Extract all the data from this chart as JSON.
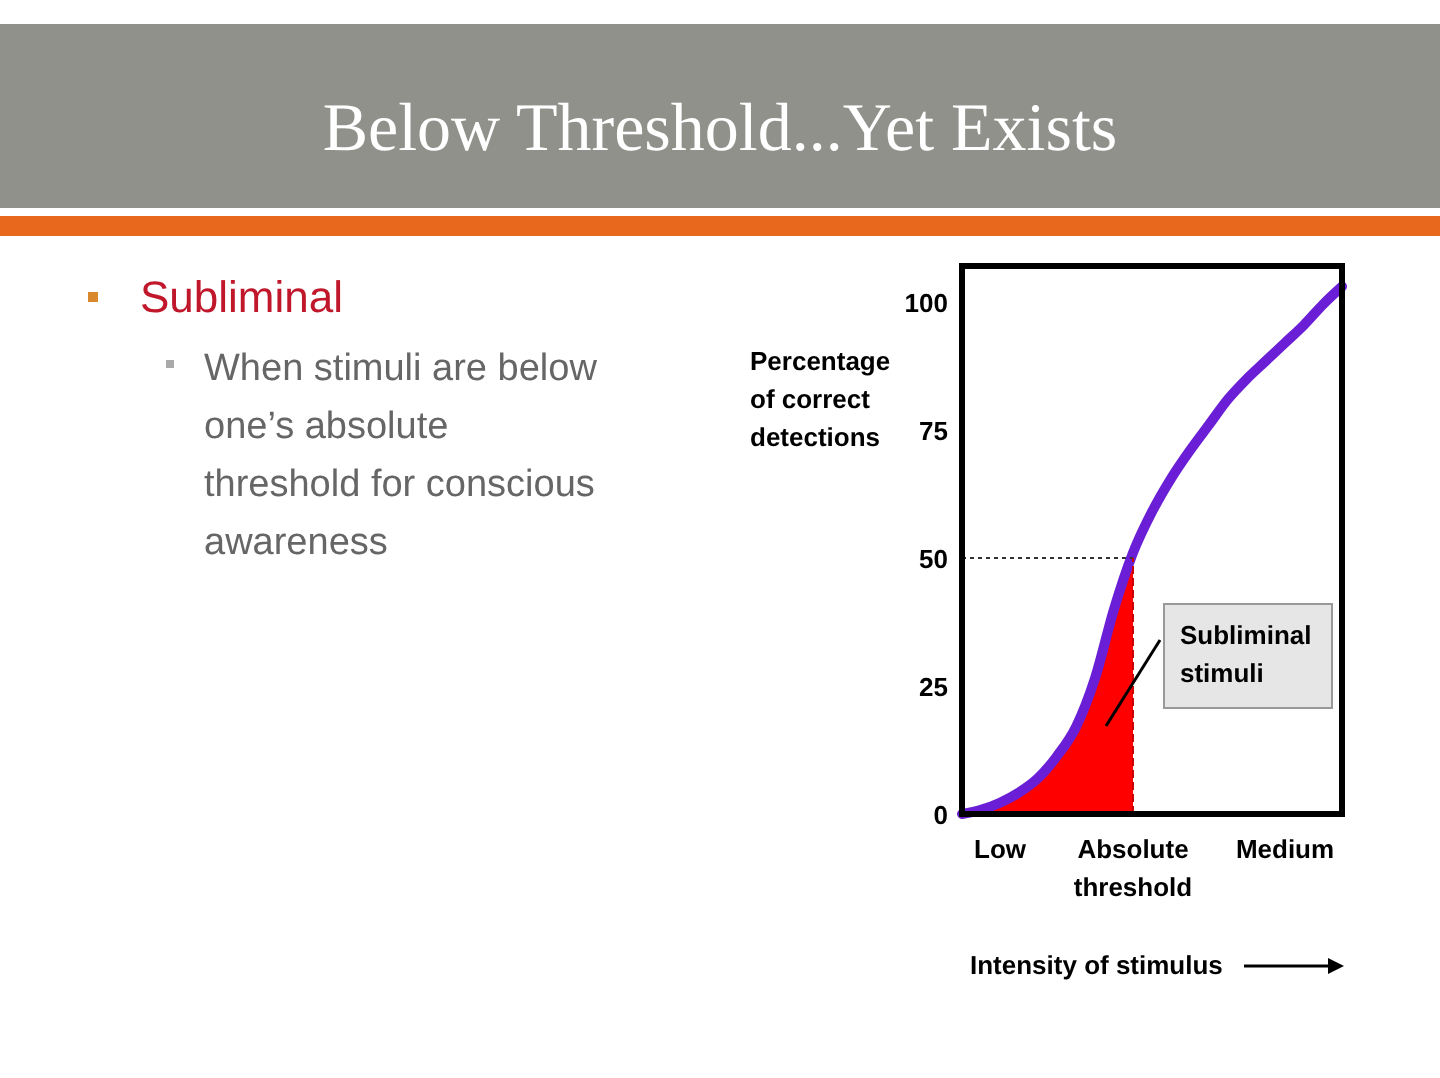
{
  "chart_data": {
    "type": "line",
    "title": "Below Threshold...Yet Exists",
    "subtitle": "Subliminal",
    "xlabel": "Intensity of stimulus",
    "ylabel": "Percentage of correct detections",
    "annotations": [
      "When stimuli are below one’s absolute threshold for conscious awareness",
      "Subliminal stimuli"
    ],
    "categories": [
      null,
      null,
      "Low",
      null,
      null,
      null,
      null,
      null,
      null,
      "Absolute threshold",
      null,
      null,
      null,
      null,
      null,
      null,
      null,
      "Medium",
      null,
      null,
      null
    ],
    "ylim": [
      0,
      107
    ],
    "yticks": [
      0,
      25,
      50,
      75,
      100
    ],
    "series": [
      {
        "type": "area",
        "color": "#ff0000",
        "values": [
          0,
          0.8,
          2.2,
          4.2,
          7,
          11.3,
          17,
          26.5,
          40,
          51,
          null,
          null,
          null,
          null,
          null,
          null,
          null,
          null,
          null,
          null,
          null
        ]
      },
      {
        "color": "#6a1fd6",
        "values": [
          0,
          0.8,
          2.2,
          4.2,
          7,
          11.3,
          17,
          26.5,
          40,
          51,
          59,
          65.5,
          71,
          76,
          81,
          85,
          88.5,
          92,
          95.5,
          99.5,
          103
        ]
      }
    ],
    "ref_lines": [
      {
        "axis": "y",
        "value": 50,
        "line_style": "dotted",
        "color": "#333333"
      },
      {
        "axis": "x",
        "value": "Absolute threshold",
        "line_style": "dashed",
        "color": "#cc0000"
      }
    ]
  }
}
